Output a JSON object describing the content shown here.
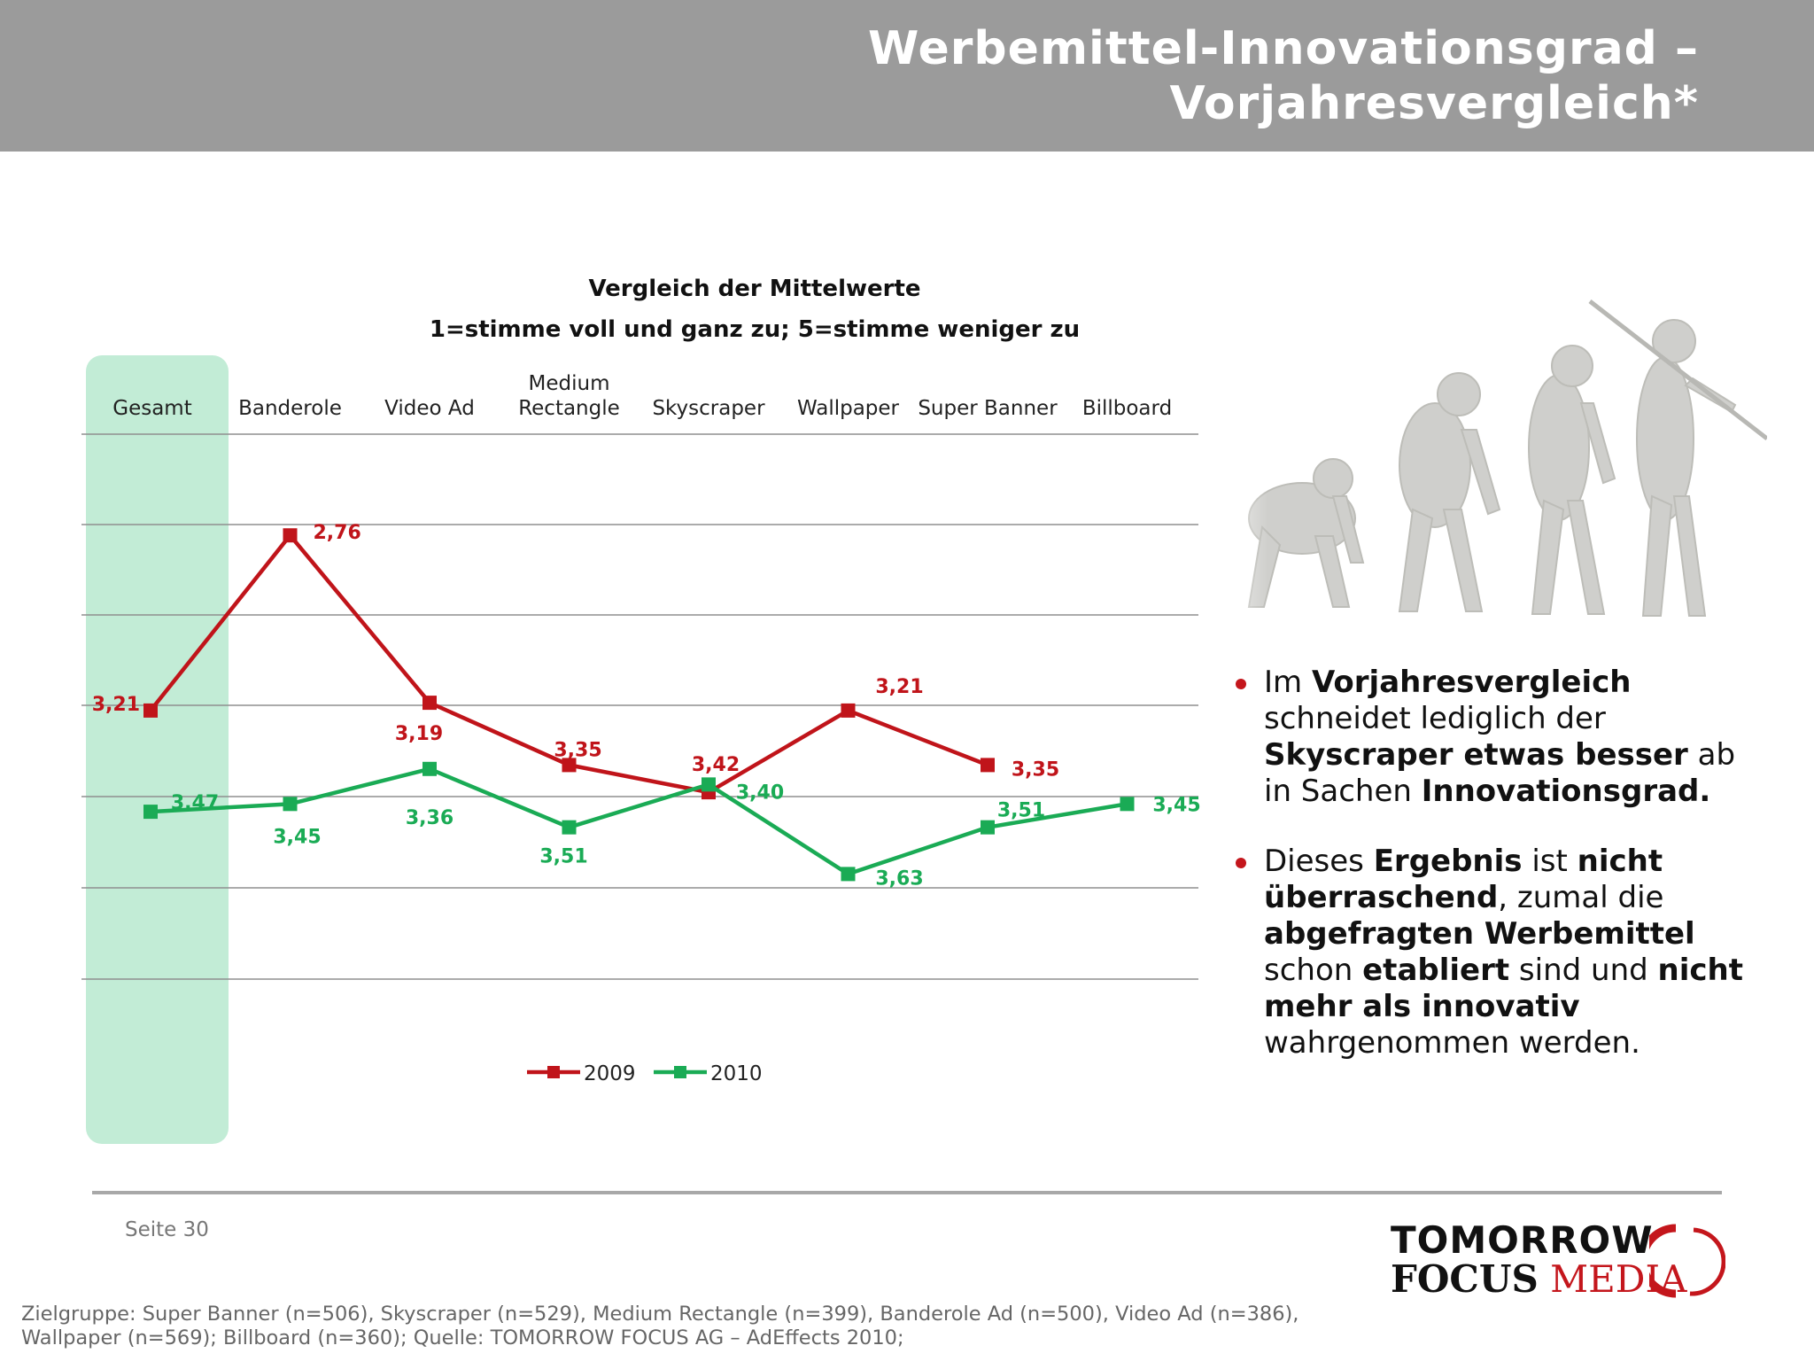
{
  "header": {
    "title_line1": "Werbemittel-Innovationsgrad –",
    "title_line2": "Vorjahresvergleich*"
  },
  "chart_data": {
    "type": "line",
    "title": "Vergleich der Mittelwerte",
    "subtitle": "1=stimme voll und ganz zu; 5=stimme weniger zu",
    "categories": [
      {
        "line1": "",
        "line2": "Gesamt"
      },
      {
        "line1": "",
        "line2": "Banderole"
      },
      {
        "line1": "",
        "line2": "Video Ad"
      },
      {
        "line1": "Medium",
        "line2": "Rectangle"
      },
      {
        "line1": "",
        "line2": "Skyscraper"
      },
      {
        "line1": "",
        "line2": "Wallpaper"
      },
      {
        "line1": "",
        "line2": "Super Banner"
      },
      {
        "line1": "",
        "line2": "Billboard"
      }
    ],
    "series": [
      {
        "name": "2009",
        "color": "#c0141a",
        "values": [
          3.21,
          2.76,
          3.19,
          3.35,
          3.42,
          3.21,
          3.35,
          null
        ],
        "labels": [
          "3,21",
          "2,76",
          "3,19",
          "3,35",
          "3,42",
          "3,21",
          "3,35",
          ""
        ]
      },
      {
        "name": "2010",
        "color": "#1aab55",
        "values": [
          3.47,
          3.45,
          3.36,
          3.51,
          3.4,
          3.63,
          3.51,
          3.45
        ],
        "labels": [
          "3,47",
          "3,45",
          "3,36",
          "3,51",
          "3,40",
          "3,63",
          "3,51",
          "3,45"
        ]
      }
    ],
    "ylim": [
      2.5,
      3.9
    ],
    "y_inverted": true,
    "grid": true,
    "legend_position": "bottom",
    "highlight_category": "Gesamt",
    "highlight_color": "#c2ecd6"
  },
  "bullets": [
    {
      "segments": [
        {
          "text": "Im ",
          "bold": false
        },
        {
          "text": "Vorjahresvergleich",
          "bold": true
        },
        {
          "text": " schneidet lediglich der ",
          "bold": false
        },
        {
          "text": "Skyscraper etwas besser",
          "bold": true
        },
        {
          "text": " ab in Sachen ",
          "bold": false
        },
        {
          "text": "Innovationsgrad.",
          "bold": true
        }
      ]
    },
    {
      "segments": [
        {
          "text": "Dieses ",
          "bold": false
        },
        {
          "text": "Ergebnis",
          "bold": true
        },
        {
          "text": " ist ",
          "bold": false
        },
        {
          "text": "nicht überraschend",
          "bold": true
        },
        {
          "text": ", zumal die ",
          "bold": false
        },
        {
          "text": "abgefragten Werbemittel",
          "bold": true
        },
        {
          "text": " schon ",
          "bold": false
        },
        {
          "text": "etabliert",
          "bold": true
        },
        {
          "text": " sind und ",
          "bold": false
        },
        {
          "text": "nicht mehr als innovativ",
          "bold": true
        },
        {
          "text": " wahrgenommen werden.",
          "bold": false
        }
      ]
    }
  ],
  "page_label": "Seite 30",
  "footer": {
    "line1": "Zielgruppe: Super Banner (n=506), Skyscraper (n=529), Medium Rectangle (n=399), Banderole Ad (n=500), Video Ad (n=386),",
    "line2": "Wallpaper (n=569); Billboard (n=360); Quelle: TOMORROW FOCUS AG – AdEffects 2010;"
  },
  "logo": {
    "line1": "TOMORROW",
    "line2a": "FOCUS",
    "line2b": " MEDIA"
  },
  "colors": {
    "header_bg": "#9b9b9b",
    "accent_red": "#c4161c"
  },
  "image": {
    "icon": "evolution-of-man-illustration"
  }
}
